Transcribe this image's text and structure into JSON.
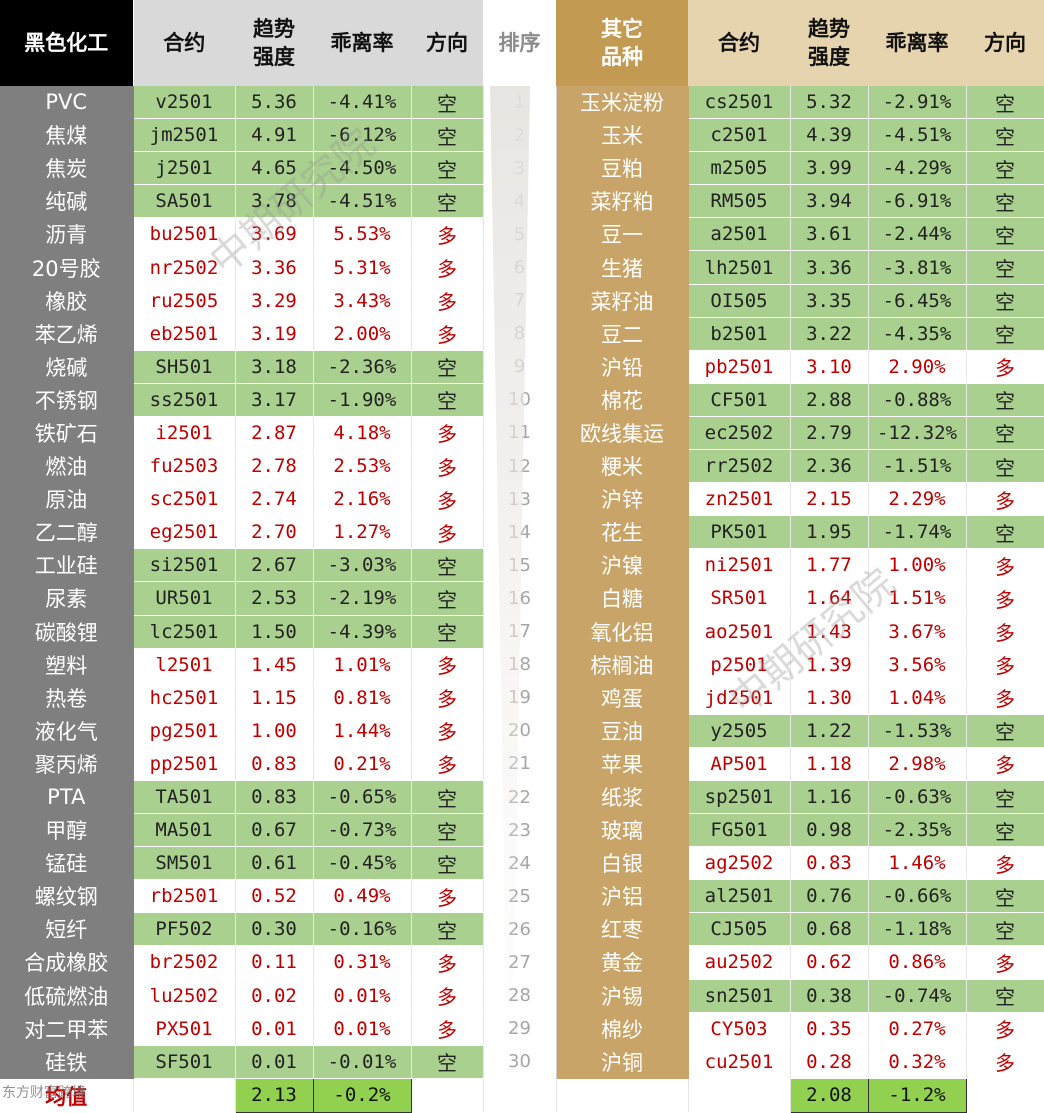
{
  "headers": {
    "left_name": "黑色化工",
    "contract": "合约",
    "trend_strength": "趋势强度",
    "deviation": "乖离率",
    "direction": "方向",
    "rank": "排序",
    "right_name": "其它品种"
  },
  "rows": [
    {
      "rank": "1",
      "l": {
        "name": "PVC",
        "contract": "v2501",
        "strength": "5.36",
        "dev": "-4.41%",
        "dir": "空"
      },
      "r": {
        "name": "玉米淀粉",
        "contract": "cs2501",
        "strength": "5.32",
        "dev": "-2.91%",
        "dir": "空"
      }
    },
    {
      "rank": "2",
      "l": {
        "name": "焦煤",
        "contract": "jm2501",
        "strength": "4.91",
        "dev": "-6.12%",
        "dir": "空"
      },
      "r": {
        "name": "玉米",
        "contract": "c2501",
        "strength": "4.39",
        "dev": "-4.51%",
        "dir": "空"
      }
    },
    {
      "rank": "3",
      "l": {
        "name": "焦炭",
        "contract": "j2501",
        "strength": "4.65",
        "dev": "-4.50%",
        "dir": "空"
      },
      "r": {
        "name": "豆粕",
        "contract": "m2505",
        "strength": "3.99",
        "dev": "-4.29%",
        "dir": "空"
      }
    },
    {
      "rank": "4",
      "l": {
        "name": "纯碱",
        "contract": "SA501",
        "strength": "3.78",
        "dev": "-4.51%",
        "dir": "空"
      },
      "r": {
        "name": "菜籽粕",
        "contract": "RM505",
        "strength": "3.94",
        "dev": "-6.91%",
        "dir": "空"
      }
    },
    {
      "rank": "5",
      "l": {
        "name": "沥青",
        "contract": "bu2501",
        "strength": "3.69",
        "dev": "5.53%",
        "dir": "多"
      },
      "r": {
        "name": "豆一",
        "contract": "a2501",
        "strength": "3.61",
        "dev": "-2.44%",
        "dir": "空"
      }
    },
    {
      "rank": "6",
      "l": {
        "name": "20号胶",
        "contract": "nr2502",
        "strength": "3.36",
        "dev": "5.31%",
        "dir": "多"
      },
      "r": {
        "name": "生猪",
        "contract": "lh2501",
        "strength": "3.36",
        "dev": "-3.81%",
        "dir": "空"
      }
    },
    {
      "rank": "7",
      "l": {
        "name": "橡胶",
        "contract": "ru2505",
        "strength": "3.29",
        "dev": "3.43%",
        "dir": "多"
      },
      "r": {
        "name": "菜籽油",
        "contract": "OI505",
        "strength": "3.35",
        "dev": "-6.45%",
        "dir": "空"
      }
    },
    {
      "rank": "8",
      "l": {
        "name": "苯乙烯",
        "contract": "eb2501",
        "strength": "3.19",
        "dev": "2.00%",
        "dir": "多"
      },
      "r": {
        "name": "豆二",
        "contract": "b2501",
        "strength": "3.22",
        "dev": "-4.35%",
        "dir": "空"
      }
    },
    {
      "rank": "9",
      "l": {
        "name": "烧碱",
        "contract": "SH501",
        "strength": "3.18",
        "dev": "-2.36%",
        "dir": "空"
      },
      "r": {
        "name": "沪铅",
        "contract": "pb2501",
        "strength": "3.10",
        "dev": "2.90%",
        "dir": "多"
      }
    },
    {
      "rank": "10",
      "l": {
        "name": "不锈钢",
        "contract": "ss2501",
        "strength": "3.17",
        "dev": "-1.90%",
        "dir": "空"
      },
      "r": {
        "name": "棉花",
        "contract": "CF501",
        "strength": "2.88",
        "dev": "-0.88%",
        "dir": "空"
      }
    },
    {
      "rank": "11",
      "l": {
        "name": "铁矿石",
        "contract": "i2501",
        "strength": "2.87",
        "dev": "4.18%",
        "dir": "多"
      },
      "r": {
        "name": "欧线集运",
        "contract": "ec2502",
        "strength": "2.79",
        "dev": "-12.32%",
        "dir": "空"
      }
    },
    {
      "rank": "12",
      "l": {
        "name": "燃油",
        "contract": "fu2503",
        "strength": "2.78",
        "dev": "2.53%",
        "dir": "多"
      },
      "r": {
        "name": "粳米",
        "contract": "rr2502",
        "strength": "2.36",
        "dev": "-1.51%",
        "dir": "空"
      }
    },
    {
      "rank": "13",
      "l": {
        "name": "原油",
        "contract": "sc2501",
        "strength": "2.74",
        "dev": "2.16%",
        "dir": "多"
      },
      "r": {
        "name": "沪锌",
        "contract": "zn2501",
        "strength": "2.15",
        "dev": "2.29%",
        "dir": "多"
      }
    },
    {
      "rank": "14",
      "l": {
        "name": "乙二醇",
        "contract": "eg2501",
        "strength": "2.70",
        "dev": "1.27%",
        "dir": "多"
      },
      "r": {
        "name": "花生",
        "contract": "PK501",
        "strength": "1.95",
        "dev": "-1.74%",
        "dir": "空"
      }
    },
    {
      "rank": "15",
      "l": {
        "name": "工业硅",
        "contract": "si2501",
        "strength": "2.67",
        "dev": "-3.03%",
        "dir": "空"
      },
      "r": {
        "name": "沪镍",
        "contract": "ni2501",
        "strength": "1.77",
        "dev": "1.00%",
        "dir": "多"
      }
    },
    {
      "rank": "16",
      "l": {
        "name": "尿素",
        "contract": "UR501",
        "strength": "2.53",
        "dev": "-2.19%",
        "dir": "空"
      },
      "r": {
        "name": "白糖",
        "contract": "SR501",
        "strength": "1.64",
        "dev": "1.51%",
        "dir": "多"
      }
    },
    {
      "rank": "17",
      "l": {
        "name": "碳酸锂",
        "contract": "lc2501",
        "strength": "1.50",
        "dev": "-4.39%",
        "dir": "空"
      },
      "r": {
        "name": "氧化铝",
        "contract": "ao2501",
        "strength": "1.43",
        "dev": "3.67%",
        "dir": "多"
      }
    },
    {
      "rank": "18",
      "l": {
        "name": "塑料",
        "contract": "l2501",
        "strength": "1.45",
        "dev": "1.01%",
        "dir": "多"
      },
      "r": {
        "name": "棕榈油",
        "contract": "p2501",
        "strength": "1.39",
        "dev": "3.56%",
        "dir": "多"
      }
    },
    {
      "rank": "19",
      "l": {
        "name": "热卷",
        "contract": "hc2501",
        "strength": "1.15",
        "dev": "0.81%",
        "dir": "多"
      },
      "r": {
        "name": "鸡蛋",
        "contract": "jd2501",
        "strength": "1.30",
        "dev": "1.04%",
        "dir": "多"
      }
    },
    {
      "rank": "20",
      "l": {
        "name": "液化气",
        "contract": "pg2501",
        "strength": "1.00",
        "dev": "1.44%",
        "dir": "多"
      },
      "r": {
        "name": "豆油",
        "contract": "y2505",
        "strength": "1.22",
        "dev": "-1.53%",
        "dir": "空"
      }
    },
    {
      "rank": "21",
      "l": {
        "name": "聚丙烯",
        "contract": "pp2501",
        "strength": "0.83",
        "dev": "0.21%",
        "dir": "多"
      },
      "r": {
        "name": "苹果",
        "contract": "AP501",
        "strength": "1.18",
        "dev": "2.98%",
        "dir": "多"
      }
    },
    {
      "rank": "22",
      "l": {
        "name": "PTA",
        "contract": "TA501",
        "strength": "0.83",
        "dev": "-0.65%",
        "dir": "空"
      },
      "r": {
        "name": "纸浆",
        "contract": "sp2501",
        "strength": "1.16",
        "dev": "-0.63%",
        "dir": "空"
      }
    },
    {
      "rank": "23",
      "l": {
        "name": "甲醇",
        "contract": "MA501",
        "strength": "0.67",
        "dev": "-0.73%",
        "dir": "空"
      },
      "r": {
        "name": "玻璃",
        "contract": "FG501",
        "strength": "0.98",
        "dev": "-2.35%",
        "dir": "空"
      }
    },
    {
      "rank": "24",
      "l": {
        "name": "锰硅",
        "contract": "SM501",
        "strength": "0.61",
        "dev": "-0.45%",
        "dir": "空"
      },
      "r": {
        "name": "白银",
        "contract": "ag2502",
        "strength": "0.83",
        "dev": "1.46%",
        "dir": "多"
      }
    },
    {
      "rank": "25",
      "l": {
        "name": "螺纹钢",
        "contract": "rb2501",
        "strength": "0.52",
        "dev": "0.49%",
        "dir": "多"
      },
      "r": {
        "name": "沪铝",
        "contract": "al2501",
        "strength": "0.76",
        "dev": "-0.66%",
        "dir": "空"
      }
    },
    {
      "rank": "26",
      "l": {
        "name": "短纤",
        "contract": "PF502",
        "strength": "0.30",
        "dev": "-0.16%",
        "dir": "空"
      },
      "r": {
        "name": "红枣",
        "contract": "CJ505",
        "strength": "0.68",
        "dev": "-1.18%",
        "dir": "空"
      }
    },
    {
      "rank": "27",
      "l": {
        "name": "合成橡胶",
        "contract": "br2502",
        "strength": "0.11",
        "dev": "0.31%",
        "dir": "多"
      },
      "r": {
        "name": "黄金",
        "contract": "au2502",
        "strength": "0.62",
        "dev": "0.86%",
        "dir": "多"
      }
    },
    {
      "rank": "28",
      "l": {
        "name": "低硫燃油",
        "contract": "lu2502",
        "strength": "0.02",
        "dev": "0.01%",
        "dir": "多"
      },
      "r": {
        "name": "沪锡",
        "contract": "sn2501",
        "strength": "0.38",
        "dev": "-0.74%",
        "dir": "空"
      }
    },
    {
      "rank": "29",
      "l": {
        "name": "对二甲苯",
        "contract": "PX501",
        "strength": "0.01",
        "dev": "0.01%",
        "dir": "多"
      },
      "r": {
        "name": "棉纱",
        "contract": "CY503",
        "strength": "0.35",
        "dev": "0.27%",
        "dir": "多"
      }
    },
    {
      "rank": "30",
      "l": {
        "name": "硅铁",
        "contract": "SF501",
        "strength": "0.01",
        "dev": "-0.01%",
        "dir": "空"
      },
      "r": {
        "name": "沪铜",
        "contract": "cu2501",
        "strength": "0.28",
        "dev": "0.32%",
        "dir": "多"
      }
    }
  ],
  "average": {
    "label": "均值",
    "left_strength": "2.13",
    "left_dev": "-0.2%",
    "right_strength": "2.08",
    "right_dev": "-1.2%"
  },
  "watermarks": {
    "text": "中期研究院",
    "corner": "东方财富跨境"
  },
  "colors": {
    "short_green": "#a9d08e",
    "long_red_text": "#c00000",
    "avg_green": "#92d050",
    "left_name_gray": "#7f7f7f",
    "right_name_gold": "#c9a468"
  }
}
